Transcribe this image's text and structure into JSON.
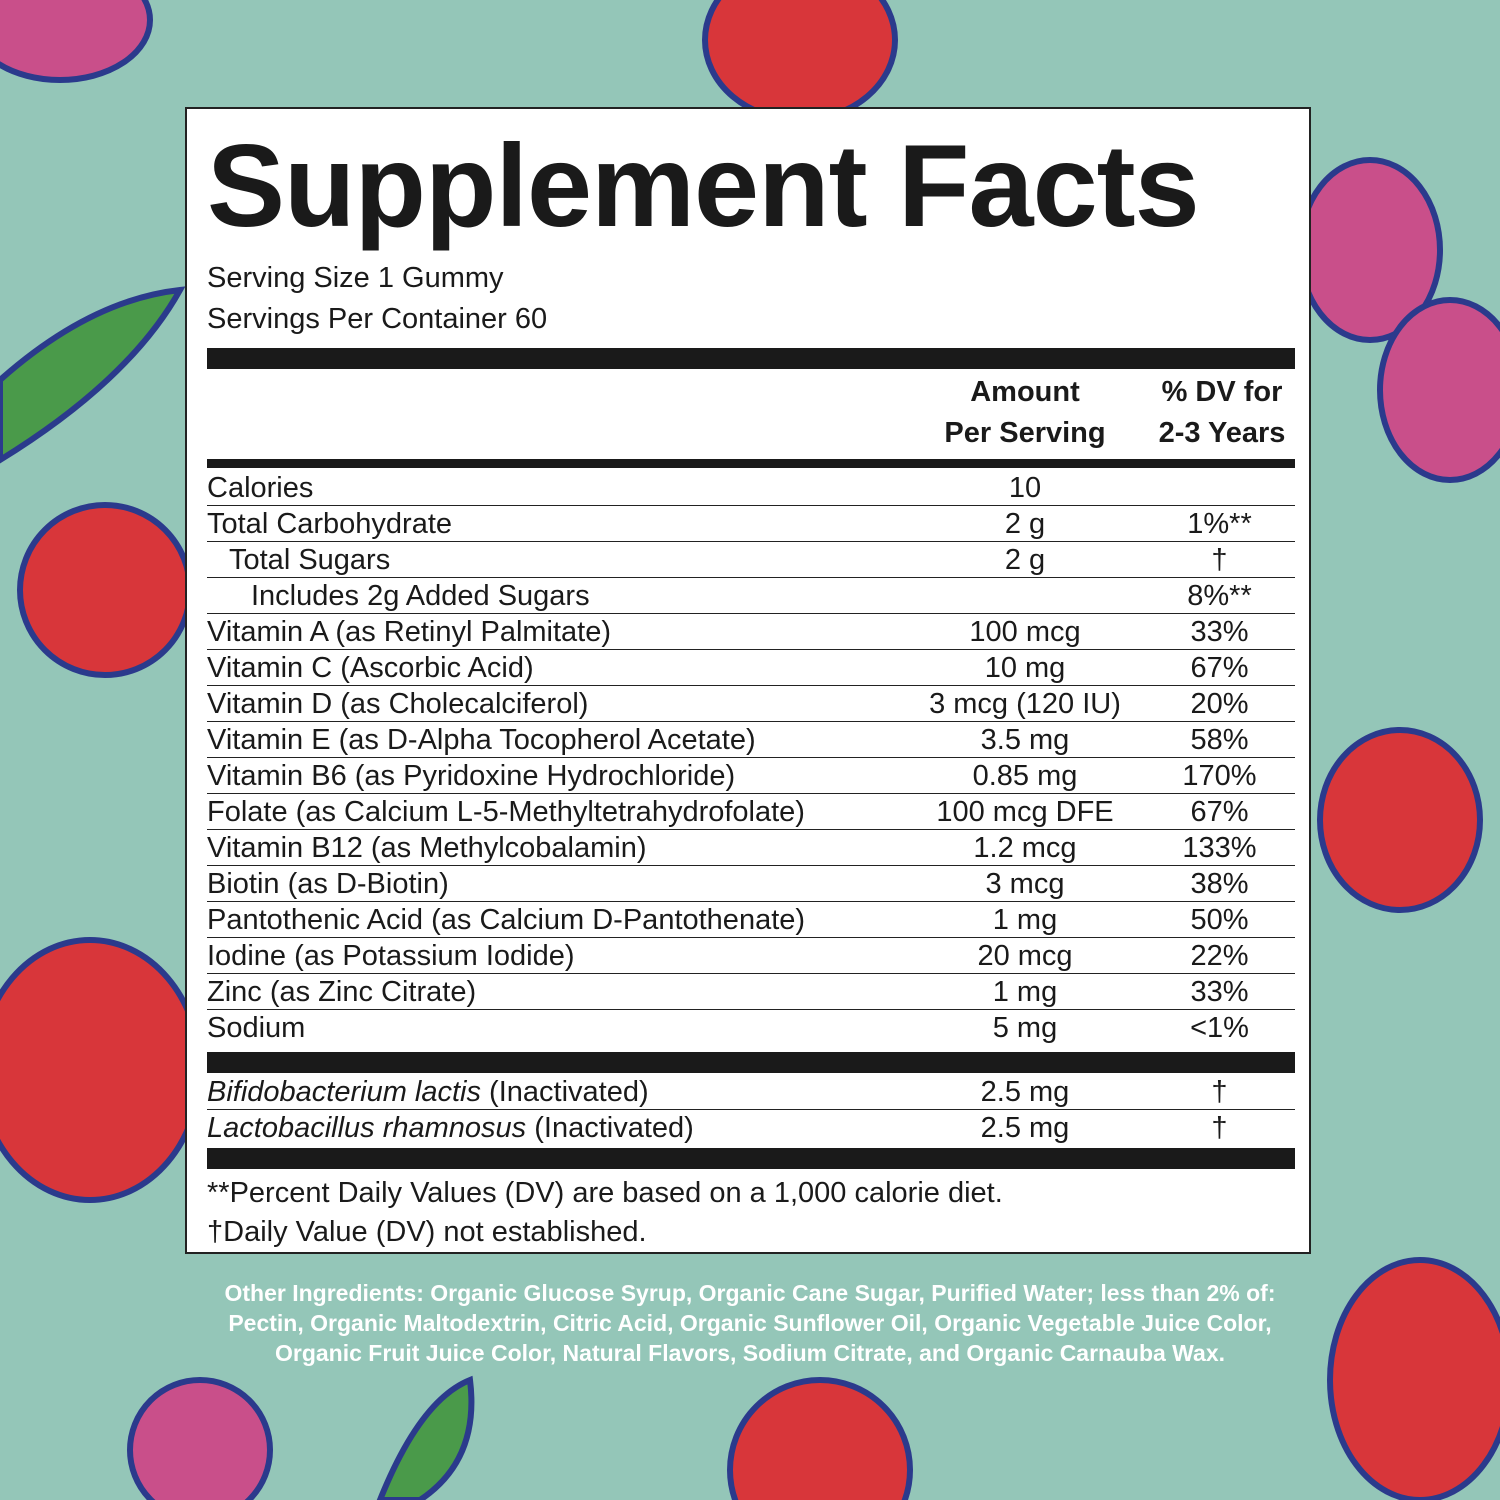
{
  "title": "Supplement Facts",
  "serving_size": "Serving Size 1 Gummy",
  "servings_per_container": "Servings Per Container 60",
  "headers": {
    "amount_line1": "Amount",
    "amount_line2": "Per Serving",
    "dv_line1": "% DV for",
    "dv_line2": "2-3 Years"
  },
  "nutrients": [
    {
      "name": "Calories",
      "amount": "10",
      "dv": "",
      "indent": 0
    },
    {
      "name": "Total Carbohydrate",
      "amount": "2 g",
      "dv": "1%**",
      "indent": 0
    },
    {
      "name": "Total Sugars",
      "amount": "2 g",
      "dv": "†",
      "indent": 1
    },
    {
      "name": "Includes 2g Added Sugars",
      "amount": "",
      "dv": "8%**",
      "indent": 2
    },
    {
      "name": "Vitamin A (as Retinyl Palmitate)",
      "amount": "100 mcg",
      "dv": "33%",
      "indent": 0
    },
    {
      "name": "Vitamin C (Ascorbic Acid)",
      "amount": "10 mg",
      "dv": "67%",
      "indent": 0
    },
    {
      "name": "Vitamin D (as Cholecalciferol)",
      "amount": "3 mcg (120 IU)",
      "dv": "20%",
      "indent": 0
    },
    {
      "name": "Vitamin E (as D-Alpha Tocopherol Acetate)",
      "amount": "3.5 mg",
      "dv": "58%",
      "indent": 0
    },
    {
      "name": "Vitamin B6 (as Pyridoxine Hydrochloride)",
      "amount": "0.85 mg",
      "dv": "170%",
      "indent": 0
    },
    {
      "name": "Folate (as Calcium L-5-Methyltetrahydrofolate)",
      "amount": "100 mcg DFE",
      "dv": "67%",
      "indent": 0
    },
    {
      "name": "Vitamin B12 (as Methylcobalamin)",
      "amount": "1.2 mcg",
      "dv": "133%",
      "indent": 0
    },
    {
      "name": "Biotin (as D-Biotin)",
      "amount": "3 mcg",
      "dv": "38%",
      "indent": 0
    },
    {
      "name": "Pantothenic Acid (as Calcium D-Pantothenate)",
      "amount": "1 mg",
      "dv": "50%",
      "indent": 0
    },
    {
      "name": "Iodine (as Potassium Iodide)",
      "amount": "20 mcg",
      "dv": "22%",
      "indent": 0
    },
    {
      "name": "Zinc (as Zinc Citrate)",
      "amount": "1 mg",
      "dv": "33%",
      "indent": 0
    },
    {
      "name": "Sodium",
      "amount": "5 mg",
      "dv": "<1%",
      "indent": 0
    }
  ],
  "probiotics": [
    {
      "name_italic": "Bifidobacterium lactis",
      "name_rest": " (Inactivated)",
      "amount": "2.5 mg",
      "dv": "†"
    },
    {
      "name_italic": "Lactobacillus rhamnosus",
      "name_rest": " (Inactivated)",
      "amount": "2.5 mg",
      "dv": "†"
    }
  ],
  "footnotes": [
    "**Percent Daily Values (DV) are based on a 1,000 calorie diet.",
    "†Daily Value (DV) not established."
  ],
  "other_ingredients": "Other Ingredients: Organic Glucose Syrup, Organic Cane Sugar, Purified Water; less than 2% of: Pectin, Organic Maltodextrin, Citric Acid, Organic Sunflower Oil, Organic Vegetable Juice Color, Organic Fruit Juice Color, Natural Flavors, Sodium Citrate, and Organic Carnauba Wax.",
  "colors": {
    "background": "#94c6b8",
    "fruit_red": "#d8363a",
    "fruit_pink": "#c94f8a",
    "outline_blue": "#2b3a8c",
    "leaf_green": "#4a9a4a"
  }
}
